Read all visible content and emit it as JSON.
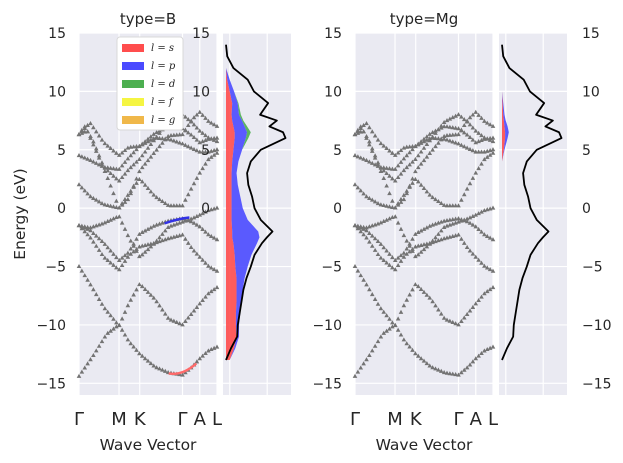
{
  "chart_data": {
    "type": "line",
    "ylabel": "Energy (eV)",
    "xlabel": "Wave Vector",
    "ylim": [
      -16,
      15
    ],
    "yticks": [
      -15,
      -10,
      -5,
      0,
      5,
      10,
      15
    ],
    "kpoint_labels": [
      "Γ",
      "M",
      "K",
      "Γ",
      "A",
      "L"
    ],
    "kpoint_positions": [
      0,
      0.29,
      0.44,
      0.75,
      0.875,
      1.0
    ],
    "legend": {
      "location": "top-right",
      "entries": [
        {
          "label": "l = s",
          "color": "#ff4d4d"
        },
        {
          "label": "l = p",
          "color": "#4a4aff"
        },
        {
          "label": "l = d",
          "color": "#4caf50"
        },
        {
          "label": "l = f",
          "color": "#f5f542"
        },
        {
          "label": "l = g",
          "color": "#f0b84a"
        }
      ]
    },
    "panels": [
      {
        "title": "type=B"
      },
      {
        "title": "type=Mg"
      }
    ],
    "bands": [
      {
        "name": "band-1",
        "points": [
          [
            0,
            -14.4
          ],
          [
            0.1,
            -12.7
          ],
          [
            0.2,
            -10.8
          ],
          [
            0.29,
            -10.0
          ],
          [
            0.36,
            -11.4
          ],
          [
            0.44,
            -12.5
          ],
          [
            0.55,
            -13.6
          ],
          [
            0.65,
            -14.1
          ],
          [
            0.75,
            -14.3
          ],
          [
            0.82,
            -13.6
          ],
          [
            0.875,
            -12.9
          ],
          [
            0.94,
            -12.2
          ],
          [
            1.0,
            -11.9
          ]
        ]
      },
      {
        "name": "band-2",
        "points": [
          [
            0,
            -5.0
          ],
          [
            0.08,
            -6.5
          ],
          [
            0.18,
            -8.5
          ],
          [
            0.29,
            -10.1
          ],
          [
            0.36,
            -8.2
          ],
          [
            0.44,
            -6.5
          ],
          [
            0.55,
            -7.8
          ],
          [
            0.65,
            -9.5
          ],
          [
            0.75,
            -10.0
          ],
          [
            0.82,
            -9.0
          ],
          [
            0.875,
            -8.2
          ],
          [
            0.94,
            -7.3
          ],
          [
            1.0,
            -6.8
          ]
        ]
      },
      {
        "name": "band-3",
        "points": [
          [
            0,
            -1.5
          ],
          [
            0.08,
            -2.5
          ],
          [
            0.18,
            -4.2
          ],
          [
            0.29,
            -5.3
          ],
          [
            0.36,
            -4.1
          ],
          [
            0.44,
            -3.3
          ],
          [
            0.55,
            -3.0
          ],
          [
            0.65,
            -2.6
          ],
          [
            0.75,
            -2.3
          ],
          [
            0.82,
            -3.5
          ],
          [
            0.875,
            -4.2
          ],
          [
            0.94,
            -5.0
          ],
          [
            1.0,
            -5.4
          ]
        ]
      },
      {
        "name": "band-4",
        "points": [
          [
            0,
            -1.5
          ],
          [
            0.08,
            -1.9
          ],
          [
            0.18,
            -3.0
          ],
          [
            0.29,
            -4.5
          ],
          [
            0.36,
            -3.8
          ],
          [
            0.44,
            -2.2
          ],
          [
            0.55,
            -1.5
          ],
          [
            0.65,
            -1.1
          ],
          [
            0.75,
            -0.9
          ],
          [
            0.82,
            -1.2
          ],
          [
            0.875,
            -1.6
          ],
          [
            0.94,
            -2.3
          ],
          [
            1.0,
            -2.7
          ]
        ]
      },
      {
        "name": "band-5",
        "points": [
          [
            0,
            -1.5
          ],
          [
            0.08,
            -1.7
          ],
          [
            0.18,
            -1.3
          ],
          [
            0.29,
            -0.7
          ],
          [
            0.36,
            -2.5
          ],
          [
            0.44,
            -4.2
          ],
          [
            0.55,
            -3.0
          ],
          [
            0.65,
            -1.6
          ],
          [
            0.75,
            -1.2
          ],
          [
            0.82,
            -0.9
          ],
          [
            0.875,
            -0.6
          ],
          [
            0.94,
            -0.2
          ],
          [
            1.0,
            0.0
          ]
        ]
      },
      {
        "name": "band-6",
        "points": [
          [
            0,
            2.0
          ],
          [
            0.08,
            1.0
          ],
          [
            0.18,
            0.3
          ],
          [
            0.29,
            0.0
          ],
          [
            0.36,
            1.2
          ],
          [
            0.44,
            2.5
          ],
          [
            0.55,
            1.0
          ],
          [
            0.65,
            0.2
          ],
          [
            0.75,
            0.2
          ],
          [
            0.82,
            1.8
          ],
          [
            0.875,
            3.0
          ],
          [
            0.94,
            4.2
          ],
          [
            1.0,
            4.7
          ]
        ]
      },
      {
        "name": "band-7",
        "points": [
          [
            0,
            4.5
          ],
          [
            0.08,
            4.1
          ],
          [
            0.18,
            3.5
          ],
          [
            0.29,
            3.3
          ],
          [
            0.36,
            4.3
          ],
          [
            0.44,
            5.3
          ],
          [
            0.55,
            6.0
          ],
          [
            0.65,
            5.9
          ],
          [
            0.75,
            5.5
          ],
          [
            0.82,
            5.1
          ],
          [
            0.875,
            4.8
          ],
          [
            0.94,
            4.8
          ],
          [
            1.0,
            5.0
          ]
        ]
      },
      {
        "name": "band-8",
        "points": [
          [
            0,
            6.3
          ],
          [
            0.08,
            7.3
          ],
          [
            0.18,
            5.6
          ],
          [
            0.29,
            4.5
          ],
          [
            0.36,
            5.2
          ],
          [
            0.44,
            5.3
          ],
          [
            0.55,
            6.4
          ],
          [
            0.65,
            7.0
          ],
          [
            0.75,
            6.8
          ],
          [
            0.82,
            6.2
          ],
          [
            0.875,
            5.6
          ],
          [
            0.94,
            5.9
          ],
          [
            1.0,
            6.0
          ]
        ]
      },
      {
        "name": "band-9",
        "points": [
          [
            0,
            6.3
          ],
          [
            0.06,
            6.6
          ],
          [
            0.12,
            5.0
          ],
          [
            0.2,
            2.8
          ],
          [
            0.29,
            0.0
          ],
          [
            0.36,
            0.8
          ],
          [
            0.44,
            3.2
          ],
          [
            0.55,
            4.8
          ],
          [
            0.65,
            6.2
          ],
          [
            0.75,
            6.3
          ],
          [
            0.82,
            7.6
          ],
          [
            0.875,
            8.2
          ],
          [
            0.94,
            7.4
          ],
          [
            1.0,
            7.0
          ]
        ]
      },
      {
        "name": "band-10",
        "points": [
          [
            0,
            6.3
          ],
          [
            0.04,
            7.0
          ],
          [
            0.1,
            5.8
          ],
          [
            0.18,
            3.5
          ],
          [
            0.29,
            2.3
          ],
          [
            0.36,
            3.3
          ],
          [
            0.44,
            4.2
          ],
          [
            0.55,
            5.9
          ],
          [
            0.65,
            7.4
          ],
          [
            0.75,
            8.0
          ],
          [
            0.82,
            7.3
          ],
          [
            0.875,
            6.6
          ],
          [
            0.94,
            6.0
          ],
          [
            1.0,
            5.7
          ]
        ]
      }
    ],
    "pdos_B": {
      "energies": [
        -13,
        -12,
        -11,
        -10,
        -9,
        -8,
        -7,
        -6,
        -5,
        -4,
        -3,
        -2.5,
        -2,
        -1,
        0,
        1,
        2,
        3,
        4,
        5,
        6,
        6.5,
        7,
        7.5,
        8,
        9,
        10,
        11,
        12,
        13,
        14
      ],
      "s": [
        0.06,
        0.13,
        0.17,
        0.16,
        0.16,
        0.17,
        0.17,
        0.17,
        0.15,
        0.14,
        0.12,
        0.1,
        0.1,
        0.09,
        0.09,
        0.09,
        0.09,
        0.09,
        0.1,
        0.12,
        0.14,
        0.14,
        0.12,
        0.1,
        0.09,
        0.1,
        0.06,
        0.02,
        0.0,
        0.0,
        0.0
      ],
      "p": [
        0.0,
        0.02,
        0.04,
        0.05,
        0.07,
        0.08,
        0.1,
        0.13,
        0.2,
        0.27,
        0.38,
        0.44,
        0.42,
        0.26,
        0.18,
        0.14,
        0.1,
        0.08,
        0.1,
        0.14,
        0.18,
        0.2,
        0.18,
        0.16,
        0.12,
        0.09,
        0.07,
        0.04,
        0.0,
        0.0,
        0.0
      ],
      "d": [
        0.0,
        0.0,
        0.0,
        0.0,
        0.0,
        0.0,
        0.0,
        0.0,
        0.0,
        0.0,
        0.0,
        0.0,
        0.0,
        0.0,
        0.0,
        0.0,
        0.0,
        0.0,
        0.0,
        0.0,
        0.04,
        0.06,
        0.04,
        0.02,
        0.03,
        0.01,
        0.0,
        0.0,
        0.0,
        0.0,
        0.0
      ],
      "total": [
        0.0,
        0.08,
        0.18,
        0.19,
        0.22,
        0.25,
        0.28,
        0.33,
        0.4,
        0.46,
        0.58,
        0.66,
        0.75,
        0.56,
        0.46,
        0.42,
        0.36,
        0.34,
        0.4,
        0.56,
        0.96,
        0.92,
        0.7,
        0.82,
        0.55,
        0.68,
        0.45,
        0.35,
        0.12,
        0.02,
        0.0
      ]
    },
    "pdos_Mg": {
      "energies": [
        -13,
        -12,
        -11,
        -10,
        -9,
        -8,
        -7,
        -6,
        -5,
        -4,
        -3,
        -2.5,
        -2,
        -1,
        0,
        1,
        2,
        3,
        4,
        5,
        6,
        6.5,
        7,
        7.5,
        8,
        9,
        10,
        11,
        12,
        13,
        14
      ],
      "s": [
        0.0,
        0.0,
        0.0,
        0.0,
        0.0,
        0.0,
        0.0,
        0.0,
        0.0,
        0.0,
        0.0,
        0.0,
        0.0,
        0.0,
        0.0,
        0.0,
        0.0,
        0.0,
        0.0,
        0.03,
        0.05,
        0.05,
        0.04,
        0.03,
        0.02,
        0.01,
        0.0,
        0.0,
        0.0,
        0.0,
        0.0
      ],
      "p": [
        0.0,
        0.0,
        0.0,
        0.0,
        0.0,
        0.0,
        0.0,
        0.0,
        0.0,
        0.0,
        0.0,
        0.0,
        0.0,
        0.0,
        0.0,
        0.0,
        0.0,
        0.0,
        0.0,
        0.01,
        0.04,
        0.06,
        0.05,
        0.03,
        0.02,
        0.01,
        0.0,
        0.0,
        0.0,
        0.0,
        0.0
      ],
      "total": [
        0.0,
        0.08,
        0.18,
        0.19,
        0.22,
        0.25,
        0.28,
        0.33,
        0.4,
        0.46,
        0.58,
        0.66,
        0.75,
        0.56,
        0.46,
        0.42,
        0.36,
        0.34,
        0.4,
        0.56,
        0.96,
        0.92,
        0.7,
        0.82,
        0.55,
        0.68,
        0.45,
        0.35,
        0.12,
        0.02,
        0.0
      ]
    }
  }
}
